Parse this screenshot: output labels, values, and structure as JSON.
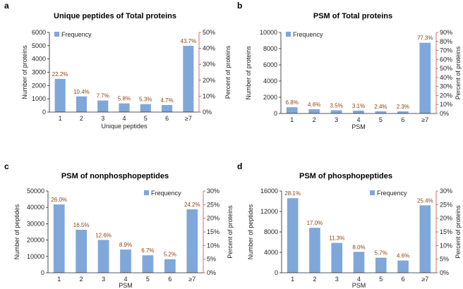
{
  "colors": {
    "bar": "#7FA7DA",
    "data_label": "#8B4513",
    "secondary_axis": "#C0504D",
    "axis": "#222222"
  },
  "chart_data": [
    {
      "type": "bar",
      "panel_letter": "a",
      "title": "Unique peptides of Total proteins",
      "xlabel": "Unique peptides",
      "ylabel": "Number of proteins",
      "y2label": "Percent of proteins",
      "categories": [
        "1",
        "2",
        "3",
        "4",
        "5",
        "6",
        "≥7"
      ],
      "series": [
        {
          "name": "Frequency",
          "values": [
            2500,
            1180,
            870,
            655,
            600,
            530,
            4990
          ]
        }
      ],
      "data_labels": [
        "22.2%",
        "10.4%",
        "7.7%",
        "5.8%",
        "5.3%",
        "4.7%",
        "43.7%"
      ],
      "ylim": [
        0,
        6000
      ],
      "yticks": [
        "0",
        "1000",
        "2000",
        "3000",
        "4000",
        "5000",
        "6000"
      ],
      "y2lim": [
        0,
        50
      ],
      "y2ticks": [
        "0%",
        "10%",
        "20%",
        "30%",
        "40%",
        "50%"
      ],
      "legend_position": "top-left"
    },
    {
      "type": "bar",
      "panel_letter": "b",
      "title": "PSM of Total proteins",
      "xlabel": "PSM",
      "ylabel": "Number of proteins",
      "y2label": "Percent of proteins",
      "categories": [
        "1",
        "2",
        "3",
        "4",
        "5",
        "6",
        "≥7"
      ],
      "series": [
        {
          "name": "Frequency",
          "values": [
            770,
            520,
            395,
            350,
            270,
            260,
            8720
          ]
        }
      ],
      "data_labels": [
        "6.8%",
        "4.6%",
        "3.5%",
        "3.1%",
        "2.4%",
        "2.3%",
        "77.3%"
      ],
      "ylim": [
        0,
        10000
      ],
      "yticks": [
        "0",
        "2000",
        "4000",
        "6000",
        "8000",
        "10000"
      ],
      "y2lim": [
        0,
        90
      ],
      "y2ticks": [
        "0%",
        "10%",
        "20%",
        "30%",
        "40%",
        "50%",
        "60%",
        "70%",
        "80%",
        "90%"
      ],
      "legend_position": "top-left"
    },
    {
      "type": "bar",
      "panel_letter": "c",
      "title": "PSM of nonphosphopeptides",
      "xlabel": "PSM",
      "ylabel": "Number of peptides",
      "y2label": "Percent of proteins",
      "categories": [
        "1",
        "2",
        "3",
        "4",
        "5",
        "6",
        "≥7"
      ],
      "series": [
        {
          "name": "Frequency",
          "values": [
            41800,
            26300,
            20100,
            14200,
            10700,
            8300,
            38800
          ]
        }
      ],
      "data_labels": [
        "26.0%",
        "16.5%",
        "12.6%",
        "8.9%",
        "6.7%",
        "5.2%",
        "24.2%"
      ],
      "ylim": [
        0,
        50000
      ],
      "yticks": [
        "0",
        "10000",
        "20000",
        "30000",
        "40000",
        "50000"
      ],
      "y2lim": [
        0,
        30
      ],
      "y2ticks": [
        "0%",
        "5%",
        "10%",
        "15%",
        "20%",
        "25%",
        "30%"
      ],
      "legend_position": "top-right"
    },
    {
      "type": "bar",
      "panel_letter": "d",
      "title": "PSM of phosphopeptides",
      "xlabel": "PSM",
      "ylabel": "Number of peptides",
      "y2label": "Percent of proteins",
      "categories": [
        "1",
        "2",
        "3",
        "4",
        "5",
        "6",
        "≥7"
      ],
      "series": [
        {
          "name": "Frequency",
          "values": [
            14600,
            8800,
            5850,
            4100,
            2950,
            2400,
            13200
          ]
        }
      ],
      "data_labels": [
        "28.1%",
        "17.0%",
        "11.3%",
        "8.0%",
        "5.7%",
        "4.6%",
        "25.4%"
      ],
      "ylim": [
        0,
        16000
      ],
      "yticks": [
        "0",
        "4000",
        "8000",
        "12000",
        "16000"
      ],
      "y2lim": [
        0,
        30
      ],
      "y2ticks": [
        "0%",
        "5%",
        "10%",
        "15%",
        "20%",
        "25%",
        "30%"
      ],
      "legend_position": "top-right"
    }
  ]
}
